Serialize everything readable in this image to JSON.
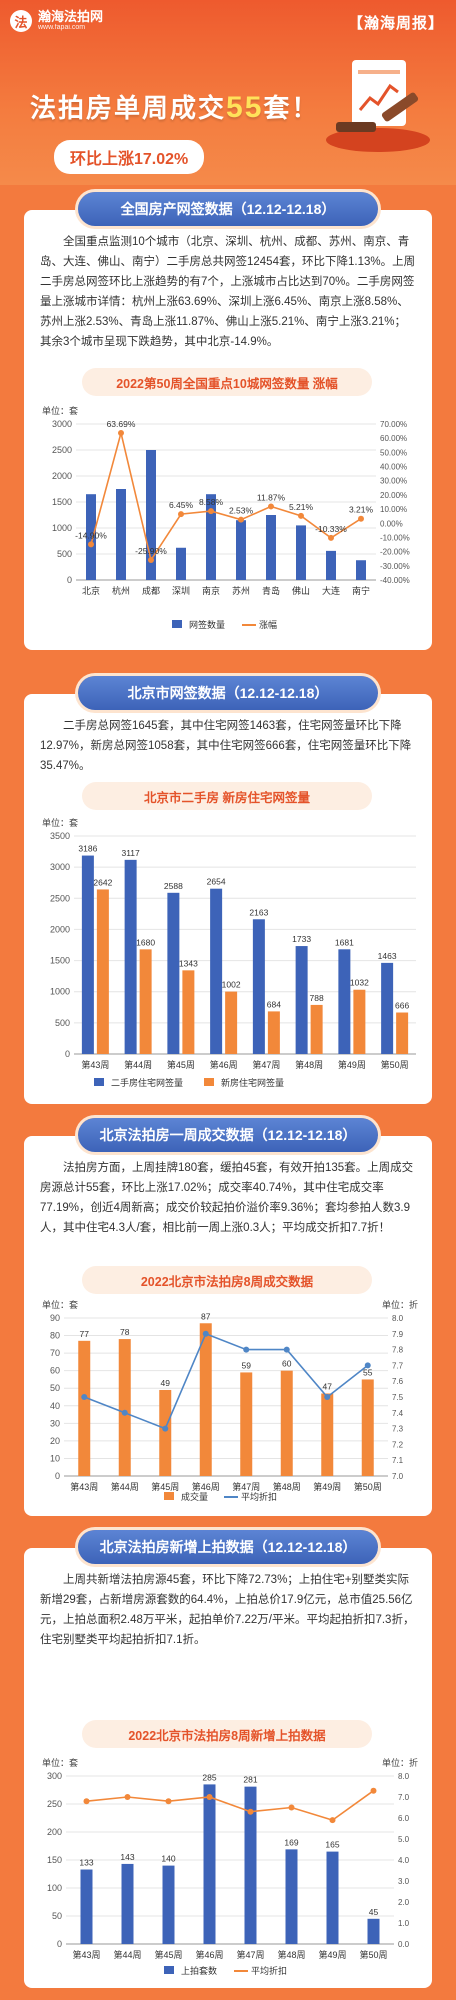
{
  "brand": {
    "logo_text": "瀚海法拍网",
    "logo_url": "www.fapai.com",
    "tag": "【瀚海周报】"
  },
  "hero": {
    "title_pre": "法拍房单周成交",
    "title_num": "55",
    "title_post": "套！",
    "pill": "环比上涨17.02%"
  },
  "colors": {
    "accent": "#e4532a",
    "blue": "#3d63b8",
    "orange": "#f2883a"
  },
  "sections": [
    {
      "title": "全国房产网签数据（12.12-12.18）",
      "text": "全国重点监测10个城市（北京、深圳、杭州、成都、苏州、南京、青岛、大连、佛山、南宁）二手房总共网签12454套，环比下降1.13%。上周二手房总网签环比上涨趋势的有7个，上涨城市占比达到70%。二手房网签量上涨城市详情：杭州上涨63.69%、深圳上涨6.45%、南京上涨8.58%、苏州上涨2.53%、青岛上涨11.87%、佛山上涨5.21%、南宁上涨3.21%；其余3个城市呈现下跌趋势，其中北京-14.9%。",
      "chart_title": "2022第50周全国重点10城网签数量 涨幅"
    },
    {
      "title": "北京市网签数据（12.12-12.18）",
      "text": "二手房总网签1645套，其中住宅网签1463套，住宅网签量环比下降12.97%，新房总网签1058套，其中住宅网签666套，住宅网签量环比下降35.47%。",
      "chart_title": "北京市二手房 新房住宅网签量"
    },
    {
      "title": "北京法拍房一周成交数据（12.12-12.18）",
      "text": "法拍房方面，上周挂牌180套，缓拍45套，有效开拍135套。上周成交房源总计55套，环比上涨17.02%；成交率40.74%，其中住宅成交率77.19%，创近4周新高；成交价较起拍价溢价率9.36%；套均参拍人数3.9人，其中住宅4.3人/套，相比前一周上涨0.3人；平均成交折扣7.7折！",
      "chart_title": "2022北京市法拍房8周成交数据"
    },
    {
      "title": "北京法拍房新增上拍数据（12.12-12.18）",
      "text": "上周共新增法拍房源45套，环比下降72.73%；上拍住宅+别墅类实际新增29套，占新增房源套数的64.4%，上拍总价17.9亿元，总市值25.56亿元，上拍总面积2.48万平米，起拍单价7.22万/平米。平均起拍折扣7.3折，住宅别墅类平均起拍折扣7.1折。",
      "chart_title": "2022北京市法拍房8周新增上拍数据"
    }
  ],
  "chart_data": [
    {
      "type": "bar",
      "title": "2022第50周全国重点10城网签数量 涨幅",
      "unit_left": "单位：套",
      "categories": [
        "北京",
        "杭州",
        "成都",
        "深圳",
        "南京",
        "苏州",
        "青岛",
        "佛山",
        "大连",
        "南宁"
      ],
      "ylim": [
        0,
        3000
      ],
      "yticks": [
        0,
        500,
        1000,
        1500,
        2000,
        2500,
        3000
      ],
      "y2lim": [
        -40,
        70
      ],
      "y2ticks": [
        "70.00%",
        "60.00%",
        "50.00%",
        "40.00%",
        "30.00%",
        "20.00%",
        "10.00%",
        "0.00%",
        "-10.00%",
        "-20.00%",
        "-30.00%",
        "-40.00%"
      ],
      "series": [
        {
          "name": "网签数量",
          "type": "bar",
          "values": [
            1650,
            1750,
            2500,
            620,
            1650,
            1150,
            1250,
            1050,
            560,
            380
          ]
        },
        {
          "name": "涨幅",
          "type": "line",
          "values": [
            -14.9,
            63.69,
            -25.9,
            6.45,
            8.58,
            2.53,
            11.87,
            5.21,
            -10.33,
            3.21
          ],
          "labels": [
            "-14.90%",
            "63.69%",
            "-25.90%",
            "6.45%",
            "8.58%",
            "2.53%",
            "11.87%",
            "5.21%",
            "-10.33%",
            "3.21%"
          ]
        }
      ],
      "legend": "bottom"
    },
    {
      "type": "bar",
      "title": "北京市二手房 新房住宅网签量",
      "unit_left": "单位：套",
      "categories": [
        "第43周",
        "第44周",
        "第45周",
        "第46周",
        "第47周",
        "第48周",
        "第49周",
        "第50周"
      ],
      "ylim": [
        0,
        3500
      ],
      "yticks": [
        0,
        500,
        1000,
        1500,
        2000,
        2500,
        3000,
        3500
      ],
      "series": [
        {
          "name": "二手房住宅网签量",
          "values": [
            3186,
            3117,
            2588,
            2654,
            2163,
            1733,
            1681,
            1463
          ]
        },
        {
          "name": "新房住宅网签量",
          "values": [
            2642,
            1680,
            1343,
            1002,
            684,
            788,
            1032,
            666
          ]
        }
      ],
      "legend": "bottom"
    },
    {
      "type": "bar",
      "title": "2022北京市法拍房8周成交数据",
      "unit_left": "单位：套",
      "unit_right": "单位：折",
      "categories": [
        "第43周",
        "第44周",
        "第45周",
        "第46周",
        "第47周",
        "第48周",
        "第49周",
        "第50周"
      ],
      "ylim": [
        0,
        90
      ],
      "yticks": [
        0,
        10,
        20,
        30,
        40,
        50,
        60,
        70,
        80,
        90
      ],
      "y2lim": [
        7.0,
        8.0
      ],
      "y2ticks": [
        "7.0",
        "7.1",
        "7.2",
        "7.3",
        "7.4",
        "7.5",
        "7.6",
        "7.7",
        "7.8",
        "7.9",
        "8.0"
      ],
      "series": [
        {
          "name": "成交量",
          "type": "bar",
          "values": [
            77,
            78,
            49,
            87,
            59,
            60,
            47,
            55
          ]
        },
        {
          "name": "平均折扣",
          "type": "line",
          "values": [
            7.5,
            7.4,
            7.3,
            7.9,
            7.8,
            7.8,
            7.5,
            7.7
          ]
        }
      ],
      "legend": "bottom"
    },
    {
      "type": "bar",
      "title": "2022北京市法拍房8周新增上拍数据",
      "unit_left": "单位：套",
      "unit_right": "单位：折",
      "categories": [
        "第43周",
        "第44周",
        "第45周",
        "第46周",
        "第47周",
        "第48周",
        "第49周",
        "第50周"
      ],
      "ylim": [
        0,
        300
      ],
      "yticks": [
        0,
        50,
        100,
        150,
        200,
        250,
        300
      ],
      "y2lim": [
        0,
        8
      ],
      "y2ticks": [
        "0.0",
        "1.0",
        "2.0",
        "3.0",
        "4.0",
        "5.0",
        "6.0",
        "7.0",
        "8.0"
      ],
      "series": [
        {
          "name": "上拍套数",
          "type": "bar",
          "values": [
            133,
            143,
            140,
            285,
            281,
            169,
            165,
            45
          ]
        },
        {
          "name": "平均折扣",
          "type": "line",
          "values": [
            6.8,
            7.0,
            6.8,
            7.0,
            6.3,
            6.5,
            5.9,
            7.3
          ]
        }
      ],
      "legend": "bottom"
    }
  ]
}
